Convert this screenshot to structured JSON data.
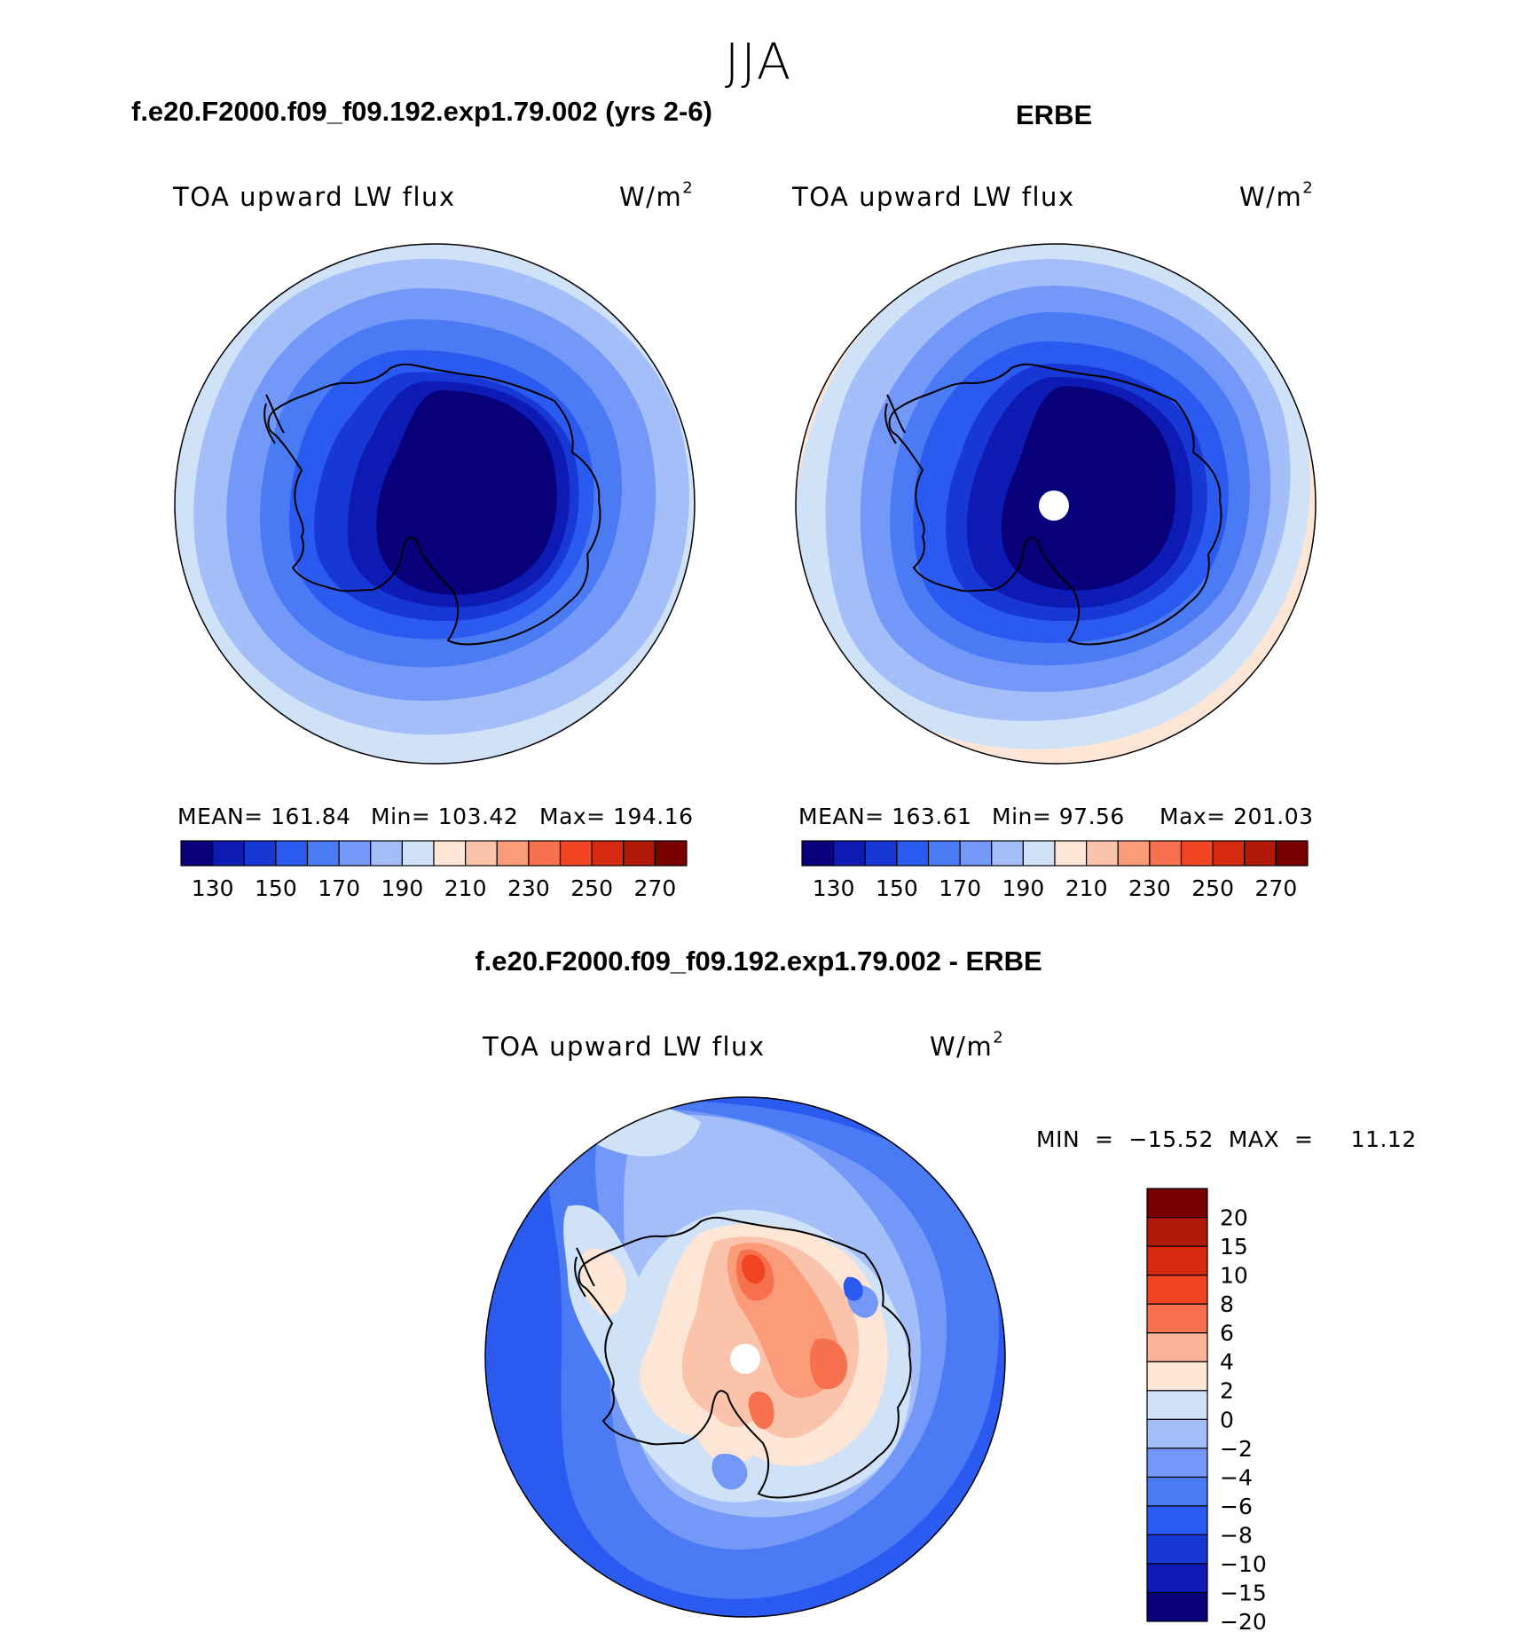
{
  "season": "JJA",
  "panels": [
    {
      "title": "f.e20.F2000.f09_f09.192.exp1.79.002 (yrs 2-6)",
      "variable": "TOA upward LW flux",
      "units_base": "W/m",
      "units_exp": "2",
      "mean_text": "MEAN=  161.84",
      "min_text": "Min=  103.42",
      "max_text": "Max=  194.16"
    },
    {
      "title": "ERBE",
      "variable": "TOA upward LW flux",
      "units_base": "W/m",
      "units_exp": "2",
      "mean_text": "MEAN=  163.61",
      "min_text": "Min=   97.56",
      "max_text": "Max=  201.03"
    },
    {
      "title": "f.e20.F2000.f09_f09.192.exp1.79.002 - ERBE",
      "variable": "TOA upward LW flux",
      "units_base": "W/m",
      "units_exp": "2",
      "minmax_text": "MIN  =  −15.52  MAX  =     11.12"
    }
  ],
  "abs_colorbar": {
    "colors": [
      "#08007a",
      "#0d1ab4",
      "#1838d6",
      "#2a5af0",
      "#4a7af4",
      "#7398f8",
      "#a3bef8",
      "#d0e2f8",
      "#fde6d6",
      "#fcc3ab",
      "#fb9b7a",
      "#f7714e",
      "#f04423",
      "#d62a0e",
      "#b11a08",
      "#7a0000"
    ],
    "tick_labels": [
      "130",
      "150",
      "170",
      "190",
      "210",
      "230",
      "250",
      "270"
    ]
  },
  "diff_colorbar": {
    "colors": [
      "#08007a",
      "#0d1ab4",
      "#1838d6",
      "#2a5af0",
      "#4a7af4",
      "#7398f8",
      "#a3bef8",
      "#d0e2f8",
      "#fde6d6",
      "#fcb498",
      "#f7714e",
      "#f04423",
      "#d62a0e",
      "#b11a08",
      "#7a0000"
    ],
    "tick_labels": [
      "20",
      "15",
      "10",
      "8",
      "6",
      "4",
      "2",
      "0",
      "−2",
      "−4",
      "−6",
      "−8",
      "−10",
      "−15",
      "−20"
    ]
  }
}
